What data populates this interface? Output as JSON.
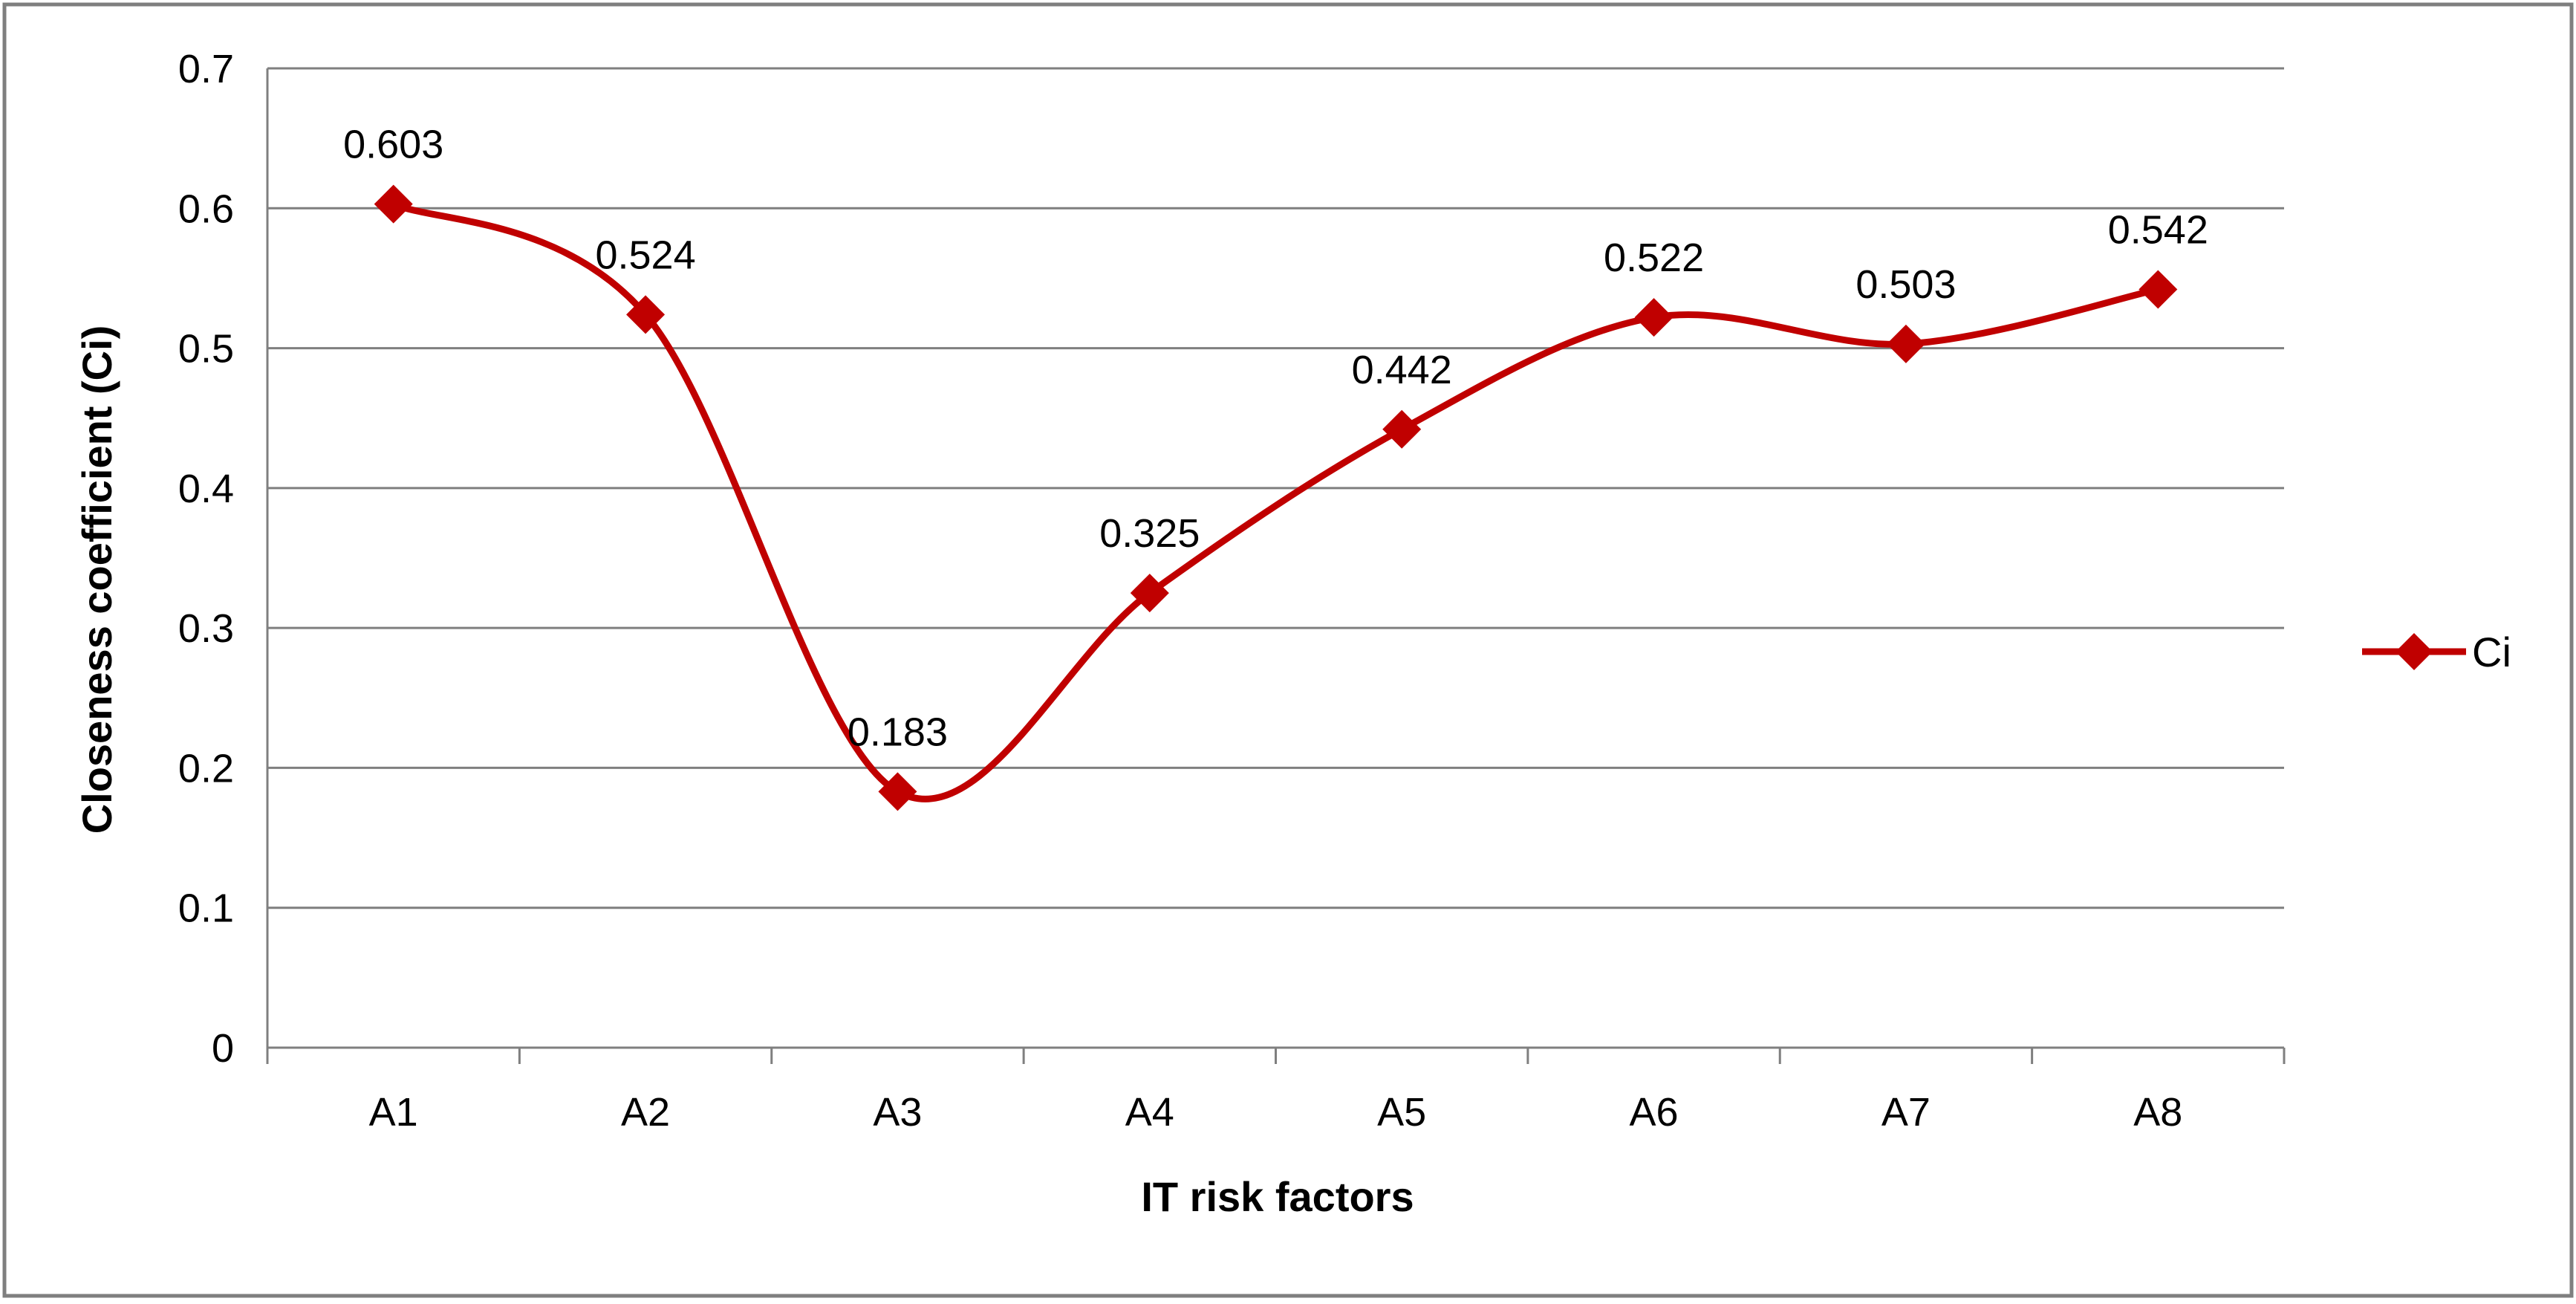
{
  "chart_data": {
    "type": "line",
    "smooth": true,
    "title": "",
    "xlabel": "IT risk factors",
    "ylabel": "Closeness coefficient (Ci)",
    "categories": [
      "A1",
      "A2",
      "A3",
      "A4",
      "A5",
      "A6",
      "A7",
      "A8"
    ],
    "series": [
      {
        "name": "Ci",
        "values": [
          0.603,
          0.524,
          0.183,
          0.325,
          0.442,
          0.522,
          0.503,
          0.542
        ],
        "labels": [
          "0.603",
          "0.524",
          "0.183",
          "0.325",
          "0.442",
          "0.522",
          "0.503",
          "0.542"
        ],
        "color": "#C00000",
        "marker": "diamond"
      }
    ],
    "ylim": [
      0,
      0.7
    ],
    "yticks": [
      "0",
      "0.1",
      "0.2",
      "0.3",
      "0.4",
      "0.5",
      "0.6",
      "0.7"
    ],
    "grid": true,
    "legend": "right",
    "colors": {
      "grid": "#7f7f7f",
      "axis": "#7f7f7f",
      "frame": "#7f7f7f",
      "series": "#C00000"
    }
  }
}
